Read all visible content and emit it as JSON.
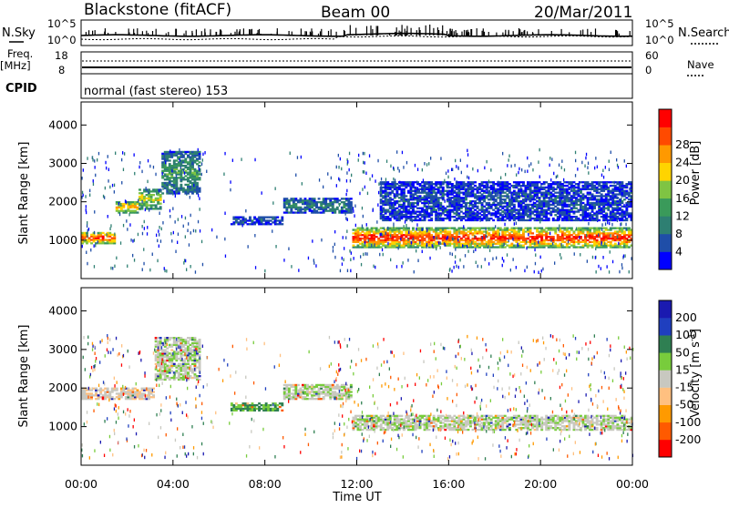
{
  "header": {
    "station": "Blackstone (fitACF)",
    "beam": "Beam 00",
    "date": "20/Mar/2011"
  },
  "top_panels": {
    "nsky_label": "N.Sky",
    "nsky_ticks": [
      "10^5",
      "10^0"
    ],
    "nsearch_label": "N.Search",
    "nsearch_ticks": [
      "10^5",
      "10^0"
    ],
    "freq_label": "Freq.",
    "freq_unit": "[MHz]",
    "freq_ticks": [
      "18",
      "8"
    ],
    "nave_label": "Nave",
    "nave_ticks": [
      "60",
      "0"
    ],
    "cpid_label": "CPID",
    "cpid_value": "normal (fast stereo) 153"
  },
  "colors": {
    "power": [
      "#0000ff",
      "#1f4ea8",
      "#2e7f72",
      "#3a9a5a",
      "#7fc443",
      "#ffd400",
      "#ff9900",
      "#ff4a00",
      "#ff0000"
    ],
    "velocity": [
      "#ff0000",
      "#ff5a00",
      "#ff9a00",
      "#ffc080",
      "#c8c8c0",
      "#78cc3c",
      "#2f7f52",
      "#1f3fbf",
      "#1a1ab0"
    ]
  },
  "chart_data": [
    {
      "type": "heatmap",
      "name": "power",
      "xlabel": "",
      "ylabel": "Slant Range [km]",
      "xlim": [
        "00:00",
        "24:00"
      ],
      "ylim": [
        0,
        4600
      ],
      "yticks": [
        "1000",
        "2000",
        "3000",
        "4000"
      ],
      "colorbar_label": "Power [dB]",
      "colorbar_ticks": [
        "4",
        "8",
        "12",
        "16",
        "20",
        "24",
        "28"
      ],
      "bands": [
        {
          "x": [
            0,
            1.5
          ],
          "y": [
            900,
            1200
          ],
          "level": 8
        },
        {
          "x": [
            1.5,
            2.5
          ],
          "y": [
            1700,
            2000
          ],
          "level": 6
        },
        {
          "x": [
            2.5,
            3.5
          ],
          "y": [
            1800,
            2300
          ],
          "level": 5
        },
        {
          "x": [
            3.5,
            5.2
          ],
          "y": [
            2200,
            3300
          ],
          "level": 3
        },
        {
          "x": [
            6.5,
            8.8
          ],
          "y": [
            1400,
            1600
          ],
          "level": 1
        },
        {
          "x": [
            8.8,
            11.8
          ],
          "y": [
            1700,
            2100
          ],
          "level": 2
        },
        {
          "x": [
            11.8,
            24
          ],
          "y": [
            800,
            1300
          ],
          "level": 8
        },
        {
          "x": [
            13,
            24
          ],
          "y": [
            1500,
            2500
          ],
          "level": 1
        }
      ]
    },
    {
      "type": "heatmap",
      "name": "velocity",
      "xlabel": "Time UT",
      "ylabel": "Slant Range [km]",
      "xlim": [
        "00:00",
        "24:00"
      ],
      "xticks": [
        "00:00",
        "04:00",
        "08:00",
        "12:00",
        "16:00",
        "20:00",
        "00:00"
      ],
      "ylim": [
        0,
        4600
      ],
      "yticks": [
        "1000",
        "2000",
        "3000",
        "4000"
      ],
      "colorbar_label": "Velocity [m s^-1]",
      "colorbar_ticks": [
        "200",
        "100",
        "50",
        "15",
        "-15",
        "-50",
        "-100",
        "-200"
      ],
      "bands": [
        {
          "x": [
            0,
            3.2
          ],
          "y": [
            1700,
            2000
          ],
          "level": -10
        },
        {
          "x": [
            3.2,
            5.2
          ],
          "y": [
            2200,
            3300
          ],
          "level": 0
        },
        {
          "x": [
            6.5,
            8.8
          ],
          "y": [
            1400,
            1600
          ],
          "level": 20
        },
        {
          "x": [
            8.8,
            11.8
          ],
          "y": [
            1700,
            2100
          ],
          "level": 0
        },
        {
          "x": [
            11.8,
            24
          ],
          "y": [
            900,
            1300
          ],
          "level": 0
        }
      ]
    }
  ]
}
